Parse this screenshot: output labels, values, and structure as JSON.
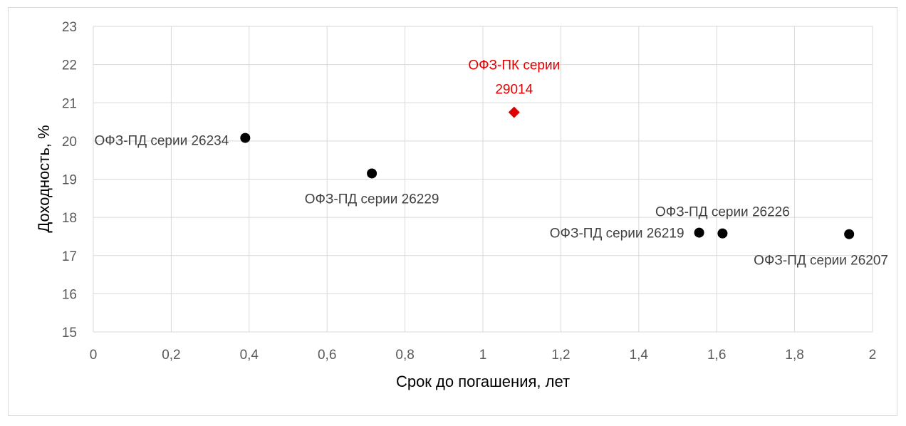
{
  "chart_data": {
    "type": "scatter",
    "title": "",
    "xlabel": "Срок до погашения, лет",
    "ylabel": "Доходность, %",
    "xlim": [
      0,
      2
    ],
    "ylim": [
      15,
      23
    ],
    "x_ticks": [
      "0",
      "0,2",
      "0,4",
      "0,6",
      "0,8",
      "1",
      "1,2",
      "1,4",
      "1,6",
      "1,8",
      "2"
    ],
    "y_ticks": [
      "15",
      "16",
      "17",
      "18",
      "19",
      "20",
      "21",
      "22",
      "23"
    ],
    "grid": true,
    "legend": "none",
    "colors": {
      "grid": "#d9d9d9",
      "tick_text": "#595959",
      "highlight": "#e00000",
      "marker": "#000000",
      "label_text": "#404040"
    },
    "points": [
      {
        "x": 0.39,
        "y": 20.08,
        "label": "ОФЗ-ПД серии 26234",
        "marker": "circle",
        "color": "#000000"
      },
      {
        "x": 0.715,
        "y": 19.15,
        "label": "ОФЗ-ПД серии 26229",
        "marker": "circle",
        "color": "#000000"
      },
      {
        "x": 1.08,
        "y": 20.75,
        "label": "ОФЗ-ПК серии 29014",
        "label_lines": [
          "ОФЗ-ПК серии",
          "29014"
        ],
        "marker": "diamond",
        "color": "#e00000"
      },
      {
        "x": 1.555,
        "y": 17.6,
        "label": "ОФЗ-ПД серии 26219",
        "marker": "circle",
        "color": "#000000"
      },
      {
        "x": 1.615,
        "y": 17.58,
        "label": "ОФЗ-ПД серии 26226",
        "marker": "circle",
        "color": "#000000"
      },
      {
        "x": 1.94,
        "y": 17.56,
        "label": "ОФЗ-ПД серии 26207",
        "marker": "circle",
        "color": "#000000"
      }
    ]
  }
}
